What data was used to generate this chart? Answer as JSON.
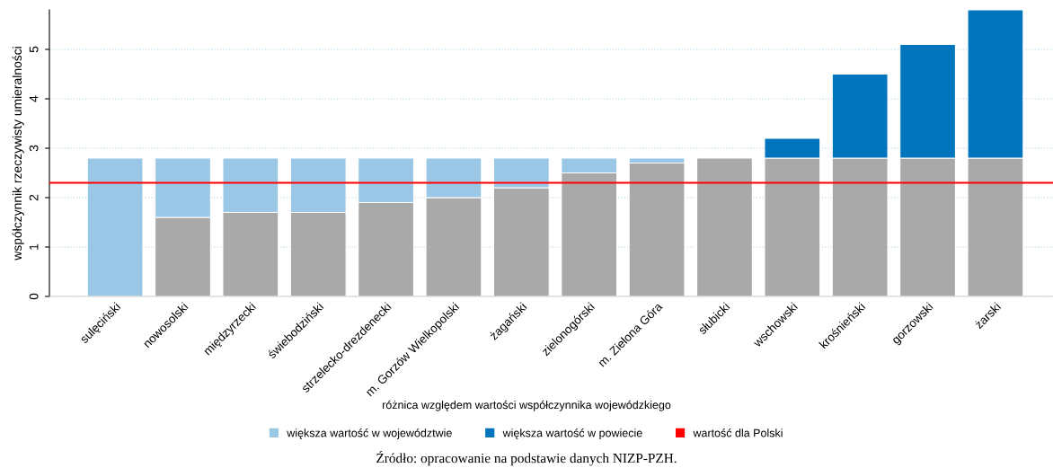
{
  "chart_data": {
    "type": "bar",
    "stacked": true,
    "ylabel": "współczynnik rzeczywisty umieralności",
    "legend_title": "różnica względem wartości współczynnika wojewódzkiego",
    "categories": [
      "sulęciński",
      "nowosolski",
      "międzyrzecki",
      "świebodziński",
      "strzelecko-drezdenecki",
      "m. Gorzów Wielkopolski",
      "żagański",
      "zielonogórski",
      "m. Zielona Góra",
      "słubicki",
      "wschowski",
      "krośnieński",
      "gorzowski",
      "żarski"
    ],
    "series": [
      {
        "color": "#a9a9a9",
        "values": [
          0,
          1.6,
          1.7,
          1.7,
          1.9,
          2.0,
          2.2,
          2.5,
          2.7,
          2.8,
          2.8,
          2.8,
          2.8,
          2.8
        ]
      },
      {
        "name": "większa wartość w województwie",
        "color": "#9bc7e6",
        "values": [
          2.8,
          1.2,
          1.1,
          1.1,
          0.9,
          0.8,
          0.6,
          0.3,
          0.1,
          0,
          0,
          0,
          0,
          0
        ]
      },
      {
        "name": "większa wartość w powiecie",
        "color": "#0075bd",
        "values": [
          0,
          0,
          0,
          0,
          0,
          0,
          0,
          0,
          0,
          0,
          0.4,
          1.7,
          2.3,
          3.0
        ]
      }
    ],
    "ref_lines": [
      {
        "axis": "y",
        "value": 2.3,
        "label": "wartość dla Polski",
        "color": "#ff0000"
      }
    ],
    "ylim": [
      0,
      5.8
    ],
    "yticks": [
      0,
      1,
      2,
      3,
      4,
      5
    ],
    "grid": "y",
    "legend": "bottom",
    "annotations": [
      "Źródło: opracowanie na podstawie danych NIZP-PZH."
    ]
  }
}
